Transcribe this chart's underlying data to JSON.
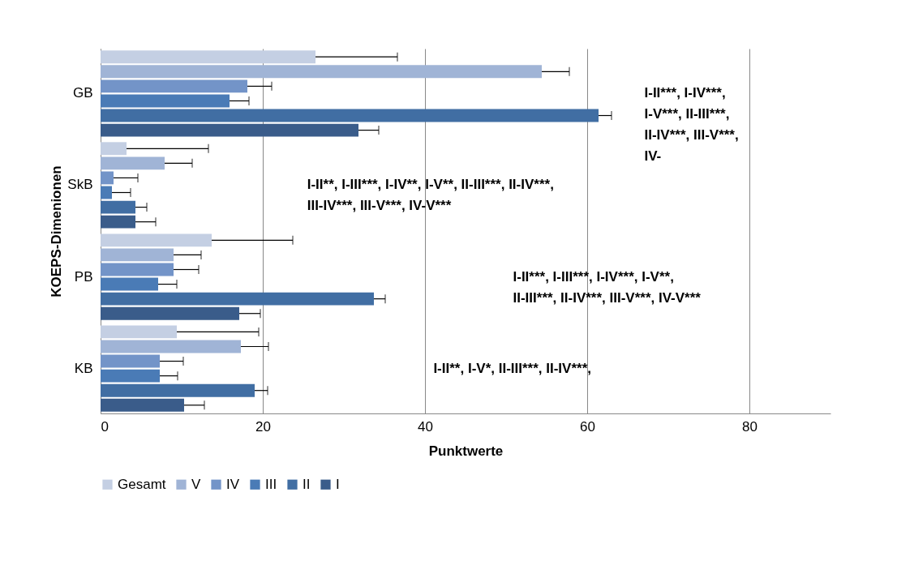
{
  "chart_data": {
    "type": "bar",
    "orientation": "horizontal",
    "xlabel": "Punktwerte",
    "ylabel": "KOEPS-Dimenionen",
    "categories": [
      "GB",
      "SkB",
      "PB",
      "KB"
    ],
    "series": [
      {
        "name": "Gesamt",
        "color": "#c4cfe3",
        "values": [
          26.5,
          3.2,
          13.7,
          9.4
        ],
        "errors": [
          [
            26.5,
            36.6
          ],
          [
            3.2,
            13.3
          ],
          [
            13.7,
            23.7
          ],
          [
            9.4,
            19.5
          ]
        ]
      },
      {
        "name": "V",
        "color": "#a0b4d6",
        "values": [
          54.4,
          7.9,
          9.0,
          17.3
        ],
        "errors": [
          [
            54.4,
            57.8
          ],
          [
            7.9,
            11.3
          ],
          [
            9.0,
            12.4
          ],
          [
            17.3,
            20.7
          ]
        ]
      },
      {
        "name": "IV",
        "color": "#7394c8",
        "values": [
          18.1,
          1.6,
          9.0,
          7.3
        ],
        "errors": [
          [
            18.1,
            21.1
          ],
          [
            1.6,
            4.6
          ],
          [
            9.0,
            12.1
          ],
          [
            7.3,
            10.2
          ]
        ]
      },
      {
        "name": "III",
        "color": "#4a7bb6",
        "values": [
          15.9,
          1.4,
          7.1,
          7.3
        ],
        "errors": [
          [
            15.9,
            18.3
          ],
          [
            1.4,
            3.7
          ],
          [
            7.1,
            9.4
          ],
          [
            7.3,
            9.5
          ]
        ]
      },
      {
        "name": "II",
        "color": "#416ea3",
        "values": [
          61.4,
          4.3,
          33.7,
          19.0
        ],
        "errors": [
          [
            61.4,
            63.0
          ],
          [
            4.3,
            5.7
          ],
          [
            33.7,
            35.1
          ],
          [
            19.0,
            20.6
          ]
        ]
      },
      {
        "name": "I",
        "color": "#3a5c8a",
        "values": [
          31.8,
          4.3,
          17.1,
          10.3
        ],
        "errors": [
          [
            31.8,
            34.3
          ],
          [
            4.3,
            6.8
          ],
          [
            17.1,
            19.7
          ],
          [
            10.3,
            12.8
          ]
        ]
      }
    ],
    "xlim": [
      0,
      90
    ],
    "xticks": [
      0,
      20,
      40,
      60,
      80
    ],
    "grid": "x",
    "legend": "bottom",
    "annotations": [
      "I-II***, I-IV***, I-V***, II-III***, II-IV***, III-V***, IV-",
      "I-II**, I-III***, I-IV**, I-V**, II-III***, II-IV***, III-IV***, III-V***, IV-V***",
      "I-II***, I-III***, I-IV***, I-V**, II-III***, II-IV***, III-V***, IV-V***",
      "I-II**, I-V*, II-III***, II-IV***,"
    ]
  }
}
